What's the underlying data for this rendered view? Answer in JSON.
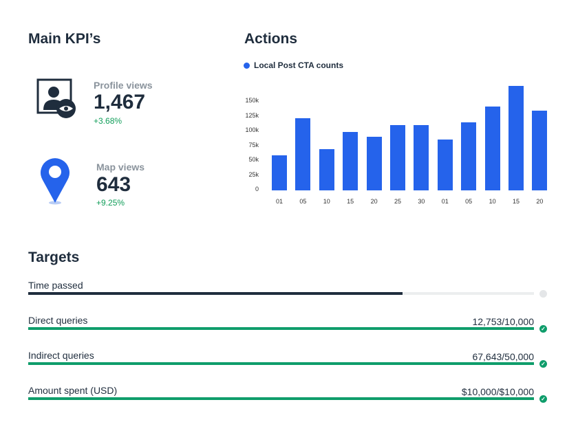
{
  "kpis": {
    "title": "Main KPI’s",
    "items": [
      {
        "label": "Profile views",
        "value": "1,467",
        "delta": "+3.68%",
        "icon": "profile-view-icon"
      },
      {
        "label": "Map views",
        "value": "643",
        "delta": "+9.25%",
        "icon": "map-pin-icon"
      }
    ]
  },
  "actions": {
    "title": "Actions"
  },
  "chart_data": {
    "type": "bar",
    "legend": "Local Post CTA counts",
    "legend_placement": "top-left",
    "categories": [
      "01",
      "05",
      "10",
      "15",
      "20",
      "25",
      "30",
      "01",
      "05",
      "10",
      "15",
      "20"
    ],
    "series": [
      {
        "name": "Local Post CTA counts",
        "values": [
          59000,
          122000,
          70000,
          99000,
          91000,
          110000,
          110000,
          86000,
          115000,
          142000,
          177000,
          135000
        ]
      }
    ],
    "yticks": [
      "0",
      "25k",
      "50k",
      "75k",
      "100k",
      "125k",
      "150k"
    ],
    "ylim": [
      0,
      180000
    ],
    "grid": false,
    "color": "#2563eb"
  },
  "targets": {
    "title": "Targets",
    "items": [
      {
        "label": "Time passed",
        "value": "",
        "progress": 0.74,
        "color": "#1f2d3d",
        "done": false
      },
      {
        "label": "Direct queries",
        "value": "12,753/10,000",
        "progress": 1,
        "color": "#0f9d6b",
        "done": true
      },
      {
        "label": "Indirect queries",
        "value": "67,643/50,000",
        "progress": 1,
        "color": "#0f9d6b",
        "done": true
      },
      {
        "label": "Amount spent (USD)",
        "value": "$10,000/$10,000",
        "progress": 1,
        "color": "#0f9d6b",
        "done": true
      }
    ]
  }
}
